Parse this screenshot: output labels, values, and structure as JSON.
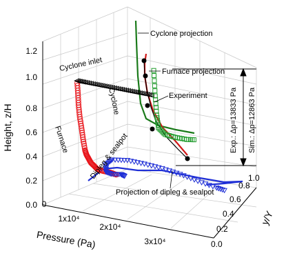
{
  "chart_data": {
    "type": "scatter-3d",
    "xlabel": "Pressure (Pa)",
    "ylabel": "y/Y",
    "zlabel": "Height, z/H",
    "x_ticks": [
      "0",
      "1x10⁴",
      "2x10⁴",
      "3x10⁴"
    ],
    "y_ticks": [
      "0.0",
      "0.2",
      "0.4",
      "0.6",
      "0.8",
      "1.0"
    ],
    "z_ticks": [
      "0.0",
      "0.2",
      "0.4",
      "0.6",
      "0.8",
      "1.0",
      "1.2"
    ],
    "xlim": [
      0,
      35000
    ],
    "ylim": [
      0,
      1.0
    ],
    "zlim": [
      0,
      1.3
    ],
    "grid": true,
    "colors": {
      "furnace": "#e8141a",
      "cyclone": "#1f9a2b",
      "dipleg": "#1f2fd6",
      "inlet": "#000000",
      "experiment": "#000000"
    },
    "annotations": {
      "cyclone_projection": "Cyclone projection",
      "furnace_projection": "Furnace projection",
      "experiment": "Experiment",
      "cyclone_inlet": "Cyclone inlet",
      "cyclone": "Cyclone",
      "furnace": "Furnace",
      "dipleg": "Dipleg & sealpot",
      "dipleg_projection": "Projection of dipleg & sealpot",
      "exp_dp": "Exp.: Δp=13833 Pa",
      "sim_dp": "Sim.: Δp=12863 Pa"
    },
    "series": [
      {
        "name": "Furnace",
        "x": [
          300,
          800,
          1500,
          2200,
          2800,
          3300,
          3700,
          4100,
          4500,
          4800,
          5000,
          5150,
          5250,
          5300,
          5300
        ],
        "y": [
          0.85,
          0.75,
          0.63,
          0.52,
          0.45,
          0.38,
          0.33,
          0.28,
          0.24,
          0.2,
          0.17,
          0.14,
          0.12,
          0.11,
          0.1
        ],
        "z": [
          0.0,
          0.05,
          0.1,
          0.15,
          0.2,
          0.25,
          0.3,
          0.35,
          0.4,
          0.5,
          0.6,
          0.7,
          0.8,
          0.9,
          1.0
        ]
      },
      {
        "name": "Cyclone inlet",
        "x": [
          5300,
          7000,
          9000,
          11000,
          13000,
          15000,
          17000,
          19000,
          21000
        ],
        "y": [
          0.1,
          0.1,
          0.1,
          0.1,
          0.1,
          0.1,
          0.1,
          0.1,
          0.1
        ],
        "z": [
          1.0,
          1.0,
          1.0,
          1.0,
          1.0,
          1.0,
          1.0,
          1.0,
          1.0
        ]
      },
      {
        "name": "Cyclone",
        "x": [
          21000,
          21300,
          21600,
          22000,
          23000,
          24500,
          26000,
          27000
        ],
        "y": [
          0.1,
          0.1,
          0.1,
          0.1,
          0.12,
          0.15,
          0.2,
          0.25
        ],
        "z": [
          1.2,
          1.0,
          0.85,
          0.75,
          0.7,
          0.68,
          0.66,
          0.65
        ]
      },
      {
        "name": "Dipleg & sealpot",
        "x": [
          2000,
          3000,
          3700,
          4300,
          6000,
          9000,
          13000,
          17000,
          21000,
          25000,
          29000,
          33000,
          35000
        ],
        "y": [
          0.85,
          0.75,
          0.6,
          0.5,
          0.4,
          0.3,
          0.25,
          0.22,
          0.2,
          0.18,
          0.16,
          0.15,
          0.15
        ],
        "z": [
          0.0,
          0.05,
          0.1,
          0.15,
          0.25,
          0.34,
          0.38,
          0.39,
          0.39,
          0.38,
          0.36,
          0.34,
          0.33
        ]
      }
    ]
  }
}
